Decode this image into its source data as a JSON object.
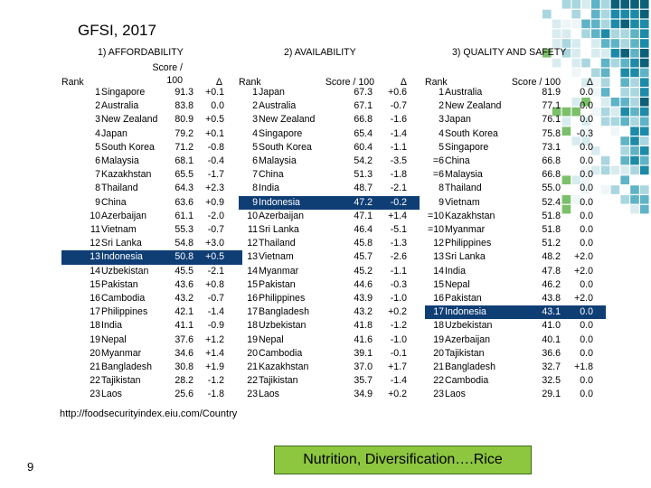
{
  "title": "GFSI, 2017",
  "url": "http://foodsecurityindex.eiu.com/Country",
  "page_number": "9",
  "footer_text": "Nutrition, Diversification….Rice",
  "highlight_color": "#0f3e75",
  "footer_color": "#8dc63f",
  "highlight_country": "Indonesia",
  "tables": [
    {
      "title": "1) AFFORDABILITY",
      "headers": {
        "rank": "Rank",
        "score_line1": "Score /",
        "score_line2": "100",
        "delta": "Δ"
      },
      "rows": [
        {
          "rank": "1",
          "country": "Singapore",
          "score": "91.3",
          "delta": "+0.1"
        },
        {
          "rank": "2",
          "country": "Australia",
          "score": "83.8",
          "delta": "0.0"
        },
        {
          "rank": "3",
          "country": "New Zealand",
          "score": "80.9",
          "delta": "+0.5"
        },
        {
          "rank": "4",
          "country": "Japan",
          "score": "79.2",
          "delta": "+0.1"
        },
        {
          "rank": "5",
          "country": "South Korea",
          "score": "71.2",
          "delta": "-0.8"
        },
        {
          "rank": "6",
          "country": "Malaysia",
          "score": "68.1",
          "delta": "-0.4"
        },
        {
          "rank": "7",
          "country": "Kazakhstan",
          "score": "65.5",
          "delta": "-1.7"
        },
        {
          "rank": "8",
          "country": "Thailand",
          "score": "64.3",
          "delta": "+2.3"
        },
        {
          "rank": "9",
          "country": "China",
          "score": "63.6",
          "delta": "+0.9"
        },
        {
          "rank": "10",
          "country": "Azerbaijan",
          "score": "61.1",
          "delta": "-2.0"
        },
        {
          "rank": "11",
          "country": "Vietnam",
          "score": "55.3",
          "delta": "-0.7"
        },
        {
          "rank": "12",
          "country": "Sri Lanka",
          "score": "54.8",
          "delta": "+3.0"
        },
        {
          "rank": "13",
          "country": "Indonesia",
          "score": "50.8",
          "delta": "+0.5"
        },
        {
          "rank": "14",
          "country": "Uzbekistan",
          "score": "45.5",
          "delta": "-2.1"
        },
        {
          "rank": "15",
          "country": "Pakistan",
          "score": "43.6",
          "delta": "+0.8"
        },
        {
          "rank": "16",
          "country": "Cambodia",
          "score": "43.2",
          "delta": "-0.7"
        },
        {
          "rank": "17",
          "country": "Philippines",
          "score": "42.1",
          "delta": "-1.4"
        },
        {
          "rank": "18",
          "country": "India",
          "score": "41.1",
          "delta": "-0.9"
        },
        {
          "rank": "19",
          "country": "Nepal",
          "score": "37.6",
          "delta": "+1.2"
        },
        {
          "rank": "20",
          "country": "Myanmar",
          "score": "34.6",
          "delta": "+1.4"
        },
        {
          "rank": "21",
          "country": "Bangladesh",
          "score": "30.8",
          "delta": "+1.9"
        },
        {
          "rank": "22",
          "country": "Tajikistan",
          "score": "28.2",
          "delta": "-1.2"
        },
        {
          "rank": "23",
          "country": "Laos",
          "score": "25.6",
          "delta": "-1.8"
        }
      ]
    },
    {
      "title": "2) AVAILABILITY",
      "headers": {
        "rank": "Rank",
        "score": "Score / 100",
        "delta": "Δ"
      },
      "rows": [
        {
          "rank": "1",
          "country": "Japan",
          "score": "67.3",
          "delta": "+0.6"
        },
        {
          "rank": "2",
          "country": "Australia",
          "score": "67.1",
          "delta": "-0.7"
        },
        {
          "rank": "3",
          "country": "New Zealand",
          "score": "66.8",
          "delta": "-1.6"
        },
        {
          "rank": "4",
          "country": "Singapore",
          "score": "65.4",
          "delta": "-1.4"
        },
        {
          "rank": "5",
          "country": "South Korea",
          "score": "60.4",
          "delta": "-1.1"
        },
        {
          "rank": "6",
          "country": "Malaysia",
          "score": "54.2",
          "delta": "-3.5"
        },
        {
          "rank": "7",
          "country": "China",
          "score": "51.3",
          "delta": "-1.8"
        },
        {
          "rank": "8",
          "country": "India",
          "score": "48.7",
          "delta": "-2.1"
        },
        {
          "rank": "9",
          "country": "Indonesia",
          "score": "47.2",
          "delta": "-0.2"
        },
        {
          "rank": "10",
          "country": "Azerbaijan",
          "score": "47.1",
          "delta": "+1.4"
        },
        {
          "rank": "11",
          "country": "Sri Lanka",
          "score": "46.4",
          "delta": "-5.1"
        },
        {
          "rank": "12",
          "country": "Thailand",
          "score": "45.8",
          "delta": "-1.3"
        },
        {
          "rank": "13",
          "country": "Vietnam",
          "score": "45.7",
          "delta": "-2.6"
        },
        {
          "rank": "14",
          "country": "Myanmar",
          "score": "45.2",
          "delta": "-1.1"
        },
        {
          "rank": "15",
          "country": "Pakistan",
          "score": "44.6",
          "delta": "-0.3"
        },
        {
          "rank": "16",
          "country": "Philippines",
          "score": "43.9",
          "delta": "-1.0"
        },
        {
          "rank": "17",
          "country": "Bangladesh",
          "score": "43.2",
          "delta": "+0.2"
        },
        {
          "rank": "18",
          "country": "Uzbekistan",
          "score": "41.8",
          "delta": "-1.2"
        },
        {
          "rank": "19",
          "country": "Nepal",
          "score": "41.6",
          "delta": "-1.0"
        },
        {
          "rank": "20",
          "country": "Cambodia",
          "score": "39.1",
          "delta": "-0.1"
        },
        {
          "rank": "21",
          "country": "Kazakhstan",
          "score": "37.0",
          "delta": "+1.7"
        },
        {
          "rank": "22",
          "country": "Tajikistan",
          "score": "35.7",
          "delta": "-1.4"
        },
        {
          "rank": "23",
          "country": "Laos",
          "score": "34.9",
          "delta": "+0.2"
        }
      ]
    },
    {
      "title": "3) QUALITY AND SAFETY",
      "headers": {
        "rank": "Rank",
        "score": "Score / 100",
        "delta": "Δ"
      },
      "rows": [
        {
          "rank": "1",
          "country": "Australia",
          "score": "81.9",
          "delta": "0.0"
        },
        {
          "rank": "2",
          "country": "New Zealand",
          "score": "77.1",
          "delta": "0.0"
        },
        {
          "rank": "3",
          "country": "Japan",
          "score": "76.1",
          "delta": "0.0"
        },
        {
          "rank": "4",
          "country": "South Korea",
          "score": "75.8",
          "delta": "-0.3"
        },
        {
          "rank": "5",
          "country": "Singapore",
          "score": "73.1",
          "delta": "0.0"
        },
        {
          "rank": "=6",
          "country": "China",
          "score": "66.8",
          "delta": "0.0"
        },
        {
          "rank": "=6",
          "country": "Malaysia",
          "score": "66.8",
          "delta": "0.0"
        },
        {
          "rank": "8",
          "country": "Thailand",
          "score": "55.0",
          "delta": "0.0"
        },
        {
          "rank": "9",
          "country": "Vietnam",
          "score": "52.4",
          "delta": "0.0"
        },
        {
          "rank": "=10",
          "country": "Kazakhstan",
          "score": "51.8",
          "delta": "0.0"
        },
        {
          "rank": "=10",
          "country": "Myanmar",
          "score": "51.8",
          "delta": "0.0"
        },
        {
          "rank": "12",
          "country": "Philippines",
          "score": "51.2",
          "delta": "0.0"
        },
        {
          "rank": "13",
          "country": "Sri Lanka",
          "score": "48.2",
          "delta": "+2.0"
        },
        {
          "rank": "14",
          "country": "India",
          "score": "47.8",
          "delta": "+2.0"
        },
        {
          "rank": "15",
          "country": "Nepal",
          "score": "46.2",
          "delta": "0.0"
        },
        {
          "rank": "16",
          "country": "Pakistan",
          "score": "43.8",
          "delta": "+2.0"
        },
        {
          "rank": "17",
          "country": "Indonesia",
          "score": "43.1",
          "delta": "0.0"
        },
        {
          "rank": "18",
          "country": "Uzbekistan",
          "score": "41.0",
          "delta": "0.0"
        },
        {
          "rank": "19",
          "country": "Azerbaijan",
          "score": "40.1",
          "delta": "0.0"
        },
        {
          "rank": "20",
          "country": "Tajikistan",
          "score": "36.6",
          "delta": "0.0"
        },
        {
          "rank": "21",
          "country": "Bangladesh",
          "score": "32.7",
          "delta": "+1.8"
        },
        {
          "rank": "22",
          "country": "Cambodia",
          "score": "32.5",
          "delta": "0.0"
        },
        {
          "rank": "23",
          "country": "Laos",
          "score": "29.1",
          "delta": "0.0"
        }
      ]
    }
  ]
}
